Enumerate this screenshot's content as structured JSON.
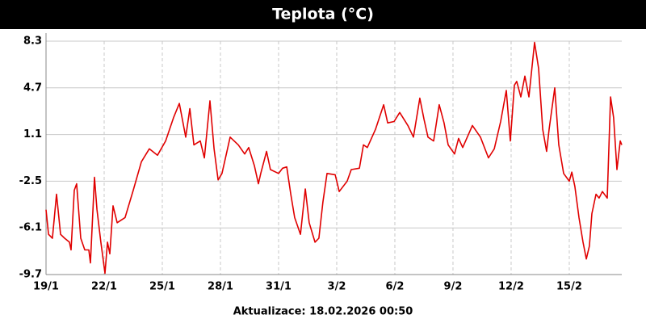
{
  "chart_data": {
    "type": "line",
    "title": "Teplota (°C)",
    "footer": "Aktualizace: 18.02.2026 00:50",
    "xlim": [
      0,
      29.71
    ],
    "ylim": [
      -9.7,
      8.3
    ],
    "xticks": [
      {
        "value": 0,
        "label": "19/1"
      },
      {
        "value": 3,
        "label": "22/1"
      },
      {
        "value": 6,
        "label": "25/1"
      },
      {
        "value": 9,
        "label": "28/1"
      },
      {
        "value": 12,
        "label": "31/1"
      },
      {
        "value": 15,
        "label": "3/2"
      },
      {
        "value": 18,
        "label": "6/2"
      },
      {
        "value": 21,
        "label": "9/2"
      },
      {
        "value": 24,
        "label": "12/2"
      },
      {
        "value": 27,
        "label": "15/2"
      }
    ],
    "yticks": [
      8.3,
      4.7,
      1.1,
      -2.5,
      -6.1,
      -9.7
    ],
    "grid": true,
    "series": [
      {
        "color": "#e00000",
        "x": [
          0,
          0.13,
          0.33,
          0.54,
          0.75,
          0.96,
          1.21,
          1.29,
          1.46,
          1.58,
          1.79,
          2.0,
          2.21,
          2.29,
          2.5,
          2.63,
          2.83,
          3.04,
          3.17,
          3.29,
          3.46,
          3.67,
          4.08,
          4.5,
          4.92,
          5.33,
          5.75,
          6.17,
          6.58,
          6.88,
          7.21,
          7.42,
          7.63,
          7.96,
          8.17,
          8.46,
          8.67,
          8.88,
          9.08,
          9.5,
          9.92,
          10.25,
          10.46,
          10.75,
          10.96,
          11.08,
          11.38,
          11.58,
          12.0,
          12.21,
          12.42,
          12.63,
          12.83,
          13.13,
          13.38,
          13.58,
          13.88,
          14.08,
          14.29,
          14.5,
          14.92,
          15.13,
          15.54,
          15.75,
          16.17,
          16.38,
          16.58,
          17.0,
          17.42,
          17.63,
          17.96,
          18.25,
          18.67,
          18.96,
          19.29,
          19.5,
          19.71,
          20.0,
          20.29,
          20.54,
          20.75,
          21.08,
          21.29,
          21.5,
          22.0,
          22.42,
          22.83,
          23.13,
          23.46,
          23.75,
          23.96,
          24.17,
          24.29,
          24.5,
          24.71,
          24.92,
          25.21,
          25.42,
          25.63,
          25.83,
          25.96,
          26.25,
          26.46,
          26.71,
          27.0,
          27.13,
          27.29,
          27.5,
          27.71,
          27.88,
          28.04,
          28.17,
          28.38,
          28.54,
          28.71,
          28.96,
          29.13,
          29.29,
          29.46,
          29.63,
          29.71
        ],
        "values": [
          -4.7,
          -6.6,
          -6.9,
          -3.5,
          -6.6,
          -6.9,
          -7.2,
          -7.8,
          -3.2,
          -2.7,
          -6.9,
          -7.8,
          -7.8,
          -8.8,
          -2.2,
          -4.7,
          -7.2,
          -9.6,
          -7.2,
          -8.1,
          -4.4,
          -5.7,
          -5.3,
          -3.2,
          -1.0,
          0.0,
          -0.5,
          0.6,
          2.4,
          3.5,
          0.9,
          3.1,
          0.3,
          0.6,
          -0.7,
          3.7,
          0.0,
          -2.4,
          -1.9,
          0.9,
          0.3,
          -0.4,
          0.1,
          -1.3,
          -2.7,
          -1.9,
          -0.2,
          -1.6,
          -1.9,
          -1.5,
          -1.4,
          -3.5,
          -5.3,
          -6.6,
          -3.1,
          -5.7,
          -7.2,
          -6.9,
          -4.1,
          -1.9,
          -2.0,
          -3.3,
          -2.5,
          -1.6,
          -1.5,
          0.3,
          0.1,
          1.5,
          3.4,
          2.0,
          2.1,
          2.8,
          1.8,
          0.9,
          3.9,
          2.3,
          0.9,
          0.6,
          3.4,
          2.0,
          0.3,
          -0.4,
          0.8,
          0.1,
          1.8,
          0.9,
          -0.7,
          0.0,
          2.1,
          4.5,
          0.6,
          4.9,
          5.2,
          4.0,
          5.6,
          4.0,
          8.2,
          6.2,
          1.5,
          -0.2,
          1.5,
          4.7,
          0.3,
          -1.9,
          -2.5,
          -1.8,
          -2.9,
          -5.3,
          -7.2,
          -8.5,
          -7.5,
          -5.0,
          -3.5,
          -3.8,
          -3.3,
          -3.8,
          4.0,
          2.4,
          -1.6,
          0.6,
          0.3
        ]
      }
    ]
  }
}
